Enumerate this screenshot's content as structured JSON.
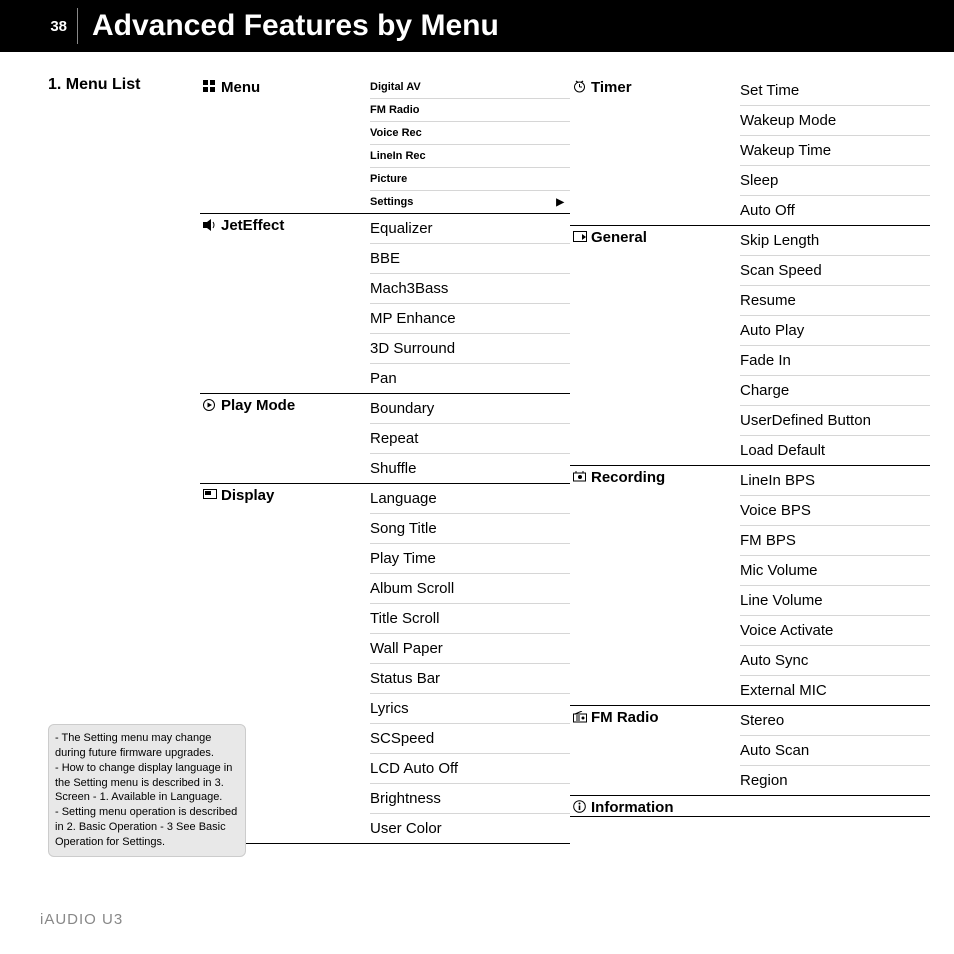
{
  "page_number": "38",
  "title": "Advanced Features by Menu",
  "section_heading": "1. Menu List",
  "footer": "iAUDIO U3",
  "note_lines": [
    "- The Setting menu may change during future firmware upgrades.",
    "- How to change display language in the Setting menu is described in 3. Screen - 1. Available in Language.",
    "- Setting menu operation is described in 2. Basic Operation - 3 See Basic Operation for Settings."
  ],
  "left_groups": [
    {
      "label": "Menu",
      "icon": "grid",
      "small": true,
      "items": [
        "Digital AV",
        "FM Radio",
        "Voice Rec",
        "LineIn Rec",
        "Picture",
        "Settings"
      ],
      "last_has_arrow": true
    },
    {
      "label": "JetEffect",
      "icon": "speaker",
      "items": [
        "Equalizer",
        "BBE",
        "Mach3Bass",
        "MP Enhance",
        "3D Surround",
        "Pan"
      ]
    },
    {
      "label": "Play Mode",
      "icon": "play",
      "items": [
        "Boundary",
        "Repeat",
        "Shuffle"
      ]
    },
    {
      "label": "Display",
      "icon": "display",
      "items": [
        "Language",
        "Song Title",
        "Play Time",
        "Album Scroll",
        "Title Scroll",
        "Wall Paper",
        "Status Bar",
        "Lyrics",
        "SCSpeed",
        "LCD Auto Off",
        "Brightness",
        "User Color"
      ]
    }
  ],
  "right_groups": [
    {
      "label": "Timer",
      "icon": "clock",
      "items": [
        "Set Time",
        "Wakeup Mode",
        "Wakeup Time",
        "Sleep",
        "Auto Off"
      ]
    },
    {
      "label": "General",
      "icon": "general",
      "items": [
        "Skip Length",
        "Scan Speed",
        "Resume",
        "Auto Play",
        "Fade In",
        "Charge",
        "UserDefined Button",
        "Load Default"
      ]
    },
    {
      "label": "Recording",
      "icon": "rec",
      "items": [
        "LineIn BPS",
        "Voice BPS",
        "FM BPS",
        "Mic Volume",
        "Line Volume",
        "Voice Activate",
        "Auto Sync",
        "External MIC"
      ]
    },
    {
      "label": "FM Radio",
      "icon": "radio",
      "items": [
        "Stereo",
        "Auto Scan",
        "Region"
      ]
    },
    {
      "label": "Information",
      "icon": "info",
      "items": []
    }
  ],
  "styling": {
    "header_bg": "#000000",
    "header_text": "#ffffff",
    "body_bg": "#ffffff",
    "text_color": "#000000",
    "divider_color": "#d6d6d6",
    "group_border": "#000000",
    "note_bg": "#e8e8e8",
    "footer_color": "#888888",
    "title_fontsize": 30,
    "section_fontsize": 16,
    "item_fontsize": 15,
    "small_item_fontsize": 11,
    "note_fontsize": 11
  }
}
